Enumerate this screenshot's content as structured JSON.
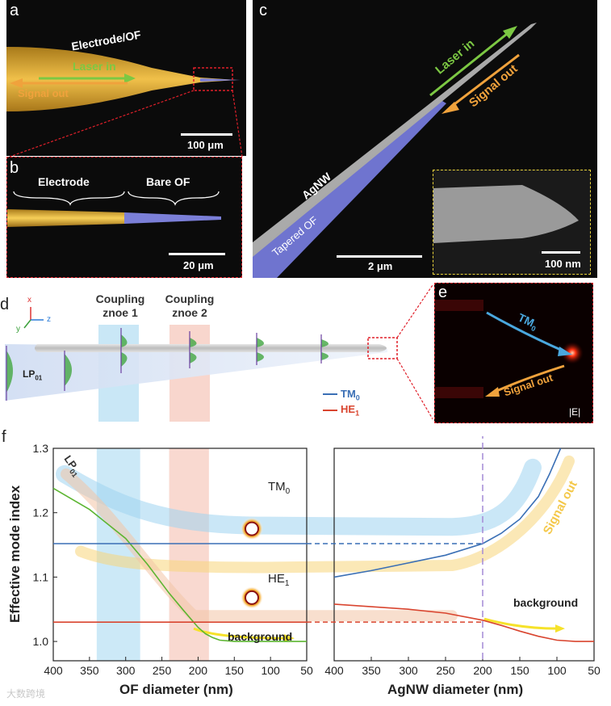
{
  "panels": {
    "a": {
      "label": "a",
      "electrode_label": "Electrode/OF",
      "laser_label": "Laser in",
      "signal_label": "Signal out",
      "scale_label": "100 μm"
    },
    "b": {
      "label": "b",
      "electrode_label": "Electrode",
      "bare_label": "Bare OF",
      "scale_label": "20 μm"
    },
    "c": {
      "label": "c",
      "laser_label": "Laser in",
      "signal_label": "Signal out",
      "agnw_label": "AgNW",
      "tapered_label": "Tapered OF",
      "scale_label": "2 μm",
      "inset_scale_label": "100 nm"
    },
    "d": {
      "label": "d",
      "coupling1": [
        "Coupling",
        "znoe 1"
      ],
      "coupling2": [
        "Coupling",
        "znoe 2"
      ],
      "mode_label": "LP",
      "mode_sub": "01",
      "legend": [
        {
          "label": "TM",
          "sub": "0",
          "color": "#3a6fb5"
        },
        {
          "label": "HE",
          "sub": "1",
          "color": "#d9452f"
        }
      ],
      "axes": {
        "x": "x",
        "y": "y",
        "z": "z"
      }
    },
    "e": {
      "label": "e",
      "tm_label": "TM",
      "tm_sub": "0",
      "signal_label": "Signal out",
      "field_label": "|E|"
    },
    "f": {
      "label": "f",
      "ylabel": "Effective mode index",
      "xlabel_left": "OF diameter (nm)",
      "xlabel_right": "AgNW diameter (nm)",
      "tm_label": "TM",
      "tm_sub": "0",
      "he_label": "HE",
      "he_sub": "1",
      "lp_label": "LP",
      "lp_sub": "01",
      "background_label": "background",
      "signal_label": "Signal out"
    }
  },
  "watermark": "大数跨境",
  "colors": {
    "tm": "#3a6fb5",
    "he": "#d9452f",
    "lp": "#5cb531",
    "laser": "#7cc843",
    "signal": "#f0a23c",
    "electrode": "#e4a72c",
    "tapered": "#7b7fd8"
  },
  "chart_data": {
    "type": "line",
    "ylim": [
      0.97,
      1.3
    ],
    "yticks": [
      1.0,
      1.1,
      1.2,
      1.3
    ],
    "left": {
      "xlabel": "OF diameter (nm)",
      "xlim": [
        400,
        50
      ],
      "xticks": [
        400,
        350,
        300,
        250,
        200,
        150,
        100,
        50
      ],
      "series": [
        {
          "name": "LP01",
          "x": [
            400,
            350,
            300,
            270,
            240,
            220,
            200,
            190,
            180,
            170,
            150,
            100,
            50
          ],
          "y": [
            1.238,
            1.205,
            1.16,
            1.12,
            1.075,
            1.048,
            1.022,
            1.012,
            1.006,
            1.002,
            1.0,
            1.0,
            1.0
          ]
        },
        {
          "name": "TM0",
          "x": [
            400,
            50
          ],
          "y": [
            1.152,
            1.152
          ]
        },
        {
          "name": "HE1",
          "x": [
            400,
            50
          ],
          "y": [
            1.03,
            1.03
          ]
        }
      ]
    },
    "right": {
      "xlabel": "AgNW diameter (nm)",
      "xlim": [
        400,
        50
      ],
      "xticks": [
        400,
        350,
        300,
        250,
        200,
        150,
        100,
        50
      ],
      "series": [
        {
          "name": "TM0",
          "x": [
            400,
            350,
            300,
            250,
            200,
            175,
            150,
            125,
            110,
            95
          ],
          "y": [
            1.1,
            1.11,
            1.122,
            1.134,
            1.152,
            1.168,
            1.19,
            1.225,
            1.26,
            1.3
          ]
        },
        {
          "name": "HE1",
          "x": [
            400,
            350,
            300,
            250,
            200,
            175,
            150,
            125,
            100,
            75,
            50
          ],
          "y": [
            1.058,
            1.054,
            1.05,
            1.044,
            1.033,
            1.025,
            1.016,
            1.008,
            1.002,
            1.0,
            1.0
          ]
        }
      ]
    }
  }
}
